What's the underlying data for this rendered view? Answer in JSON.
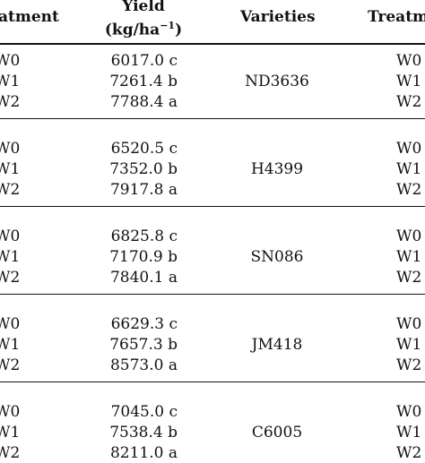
{
  "headers": {
    "treatment": "atment",
    "yield_line1": "Yield",
    "yield_line2": "(kg/ha",
    "yield_sup": "−1",
    "yield_close": ")",
    "varieties": "Varieties",
    "treatment_right": "Treatm"
  },
  "groups": [
    {
      "variety": "ND3636",
      "rows": [
        {
          "treatment": "W0",
          "yield": "6017.0 c",
          "treatment_right": "W0"
        },
        {
          "treatment": "W1",
          "yield": "7261.4 b",
          "treatment_right": "W1"
        },
        {
          "treatment": "W2",
          "yield": "7788.4 a",
          "treatment_right": "W2"
        }
      ]
    },
    {
      "variety": "H4399",
      "rows": [
        {
          "treatment": "W0",
          "yield": "6520.5 c",
          "treatment_right": "W0"
        },
        {
          "treatment": "W1",
          "yield": "7352.0 b",
          "treatment_right": "W1"
        },
        {
          "treatment": "W2",
          "yield": "7917.8 a",
          "treatment_right": "W2"
        }
      ]
    },
    {
      "variety": "SN086",
      "rows": [
        {
          "treatment": "W0",
          "yield": "6825.8 c",
          "treatment_right": "W0"
        },
        {
          "treatment": "W1",
          "yield": "7170.9 b",
          "treatment_right": "W1"
        },
        {
          "treatment": "W2",
          "yield": "7840.1 a",
          "treatment_right": "W2"
        }
      ]
    },
    {
      "variety": "JM418",
      "rows": [
        {
          "treatment": "W0",
          "yield": "6629.3 c",
          "treatment_right": "W0"
        },
        {
          "treatment": "W1",
          "yield": "7657.3 b",
          "treatment_right": "W1"
        },
        {
          "treatment": "W2",
          "yield": "8573.0 a",
          "treatment_right": "W2"
        }
      ]
    },
    {
      "variety": "C6005",
      "rows": [
        {
          "treatment": "W0",
          "yield": "7045.0 c",
          "treatment_right": "W0"
        },
        {
          "treatment": "W1",
          "yield": "7538.4 b",
          "treatment_right": "W1"
        },
        {
          "treatment": "W2",
          "yield": "8211.0 a",
          "treatment_right": "W2"
        }
      ]
    }
  ]
}
